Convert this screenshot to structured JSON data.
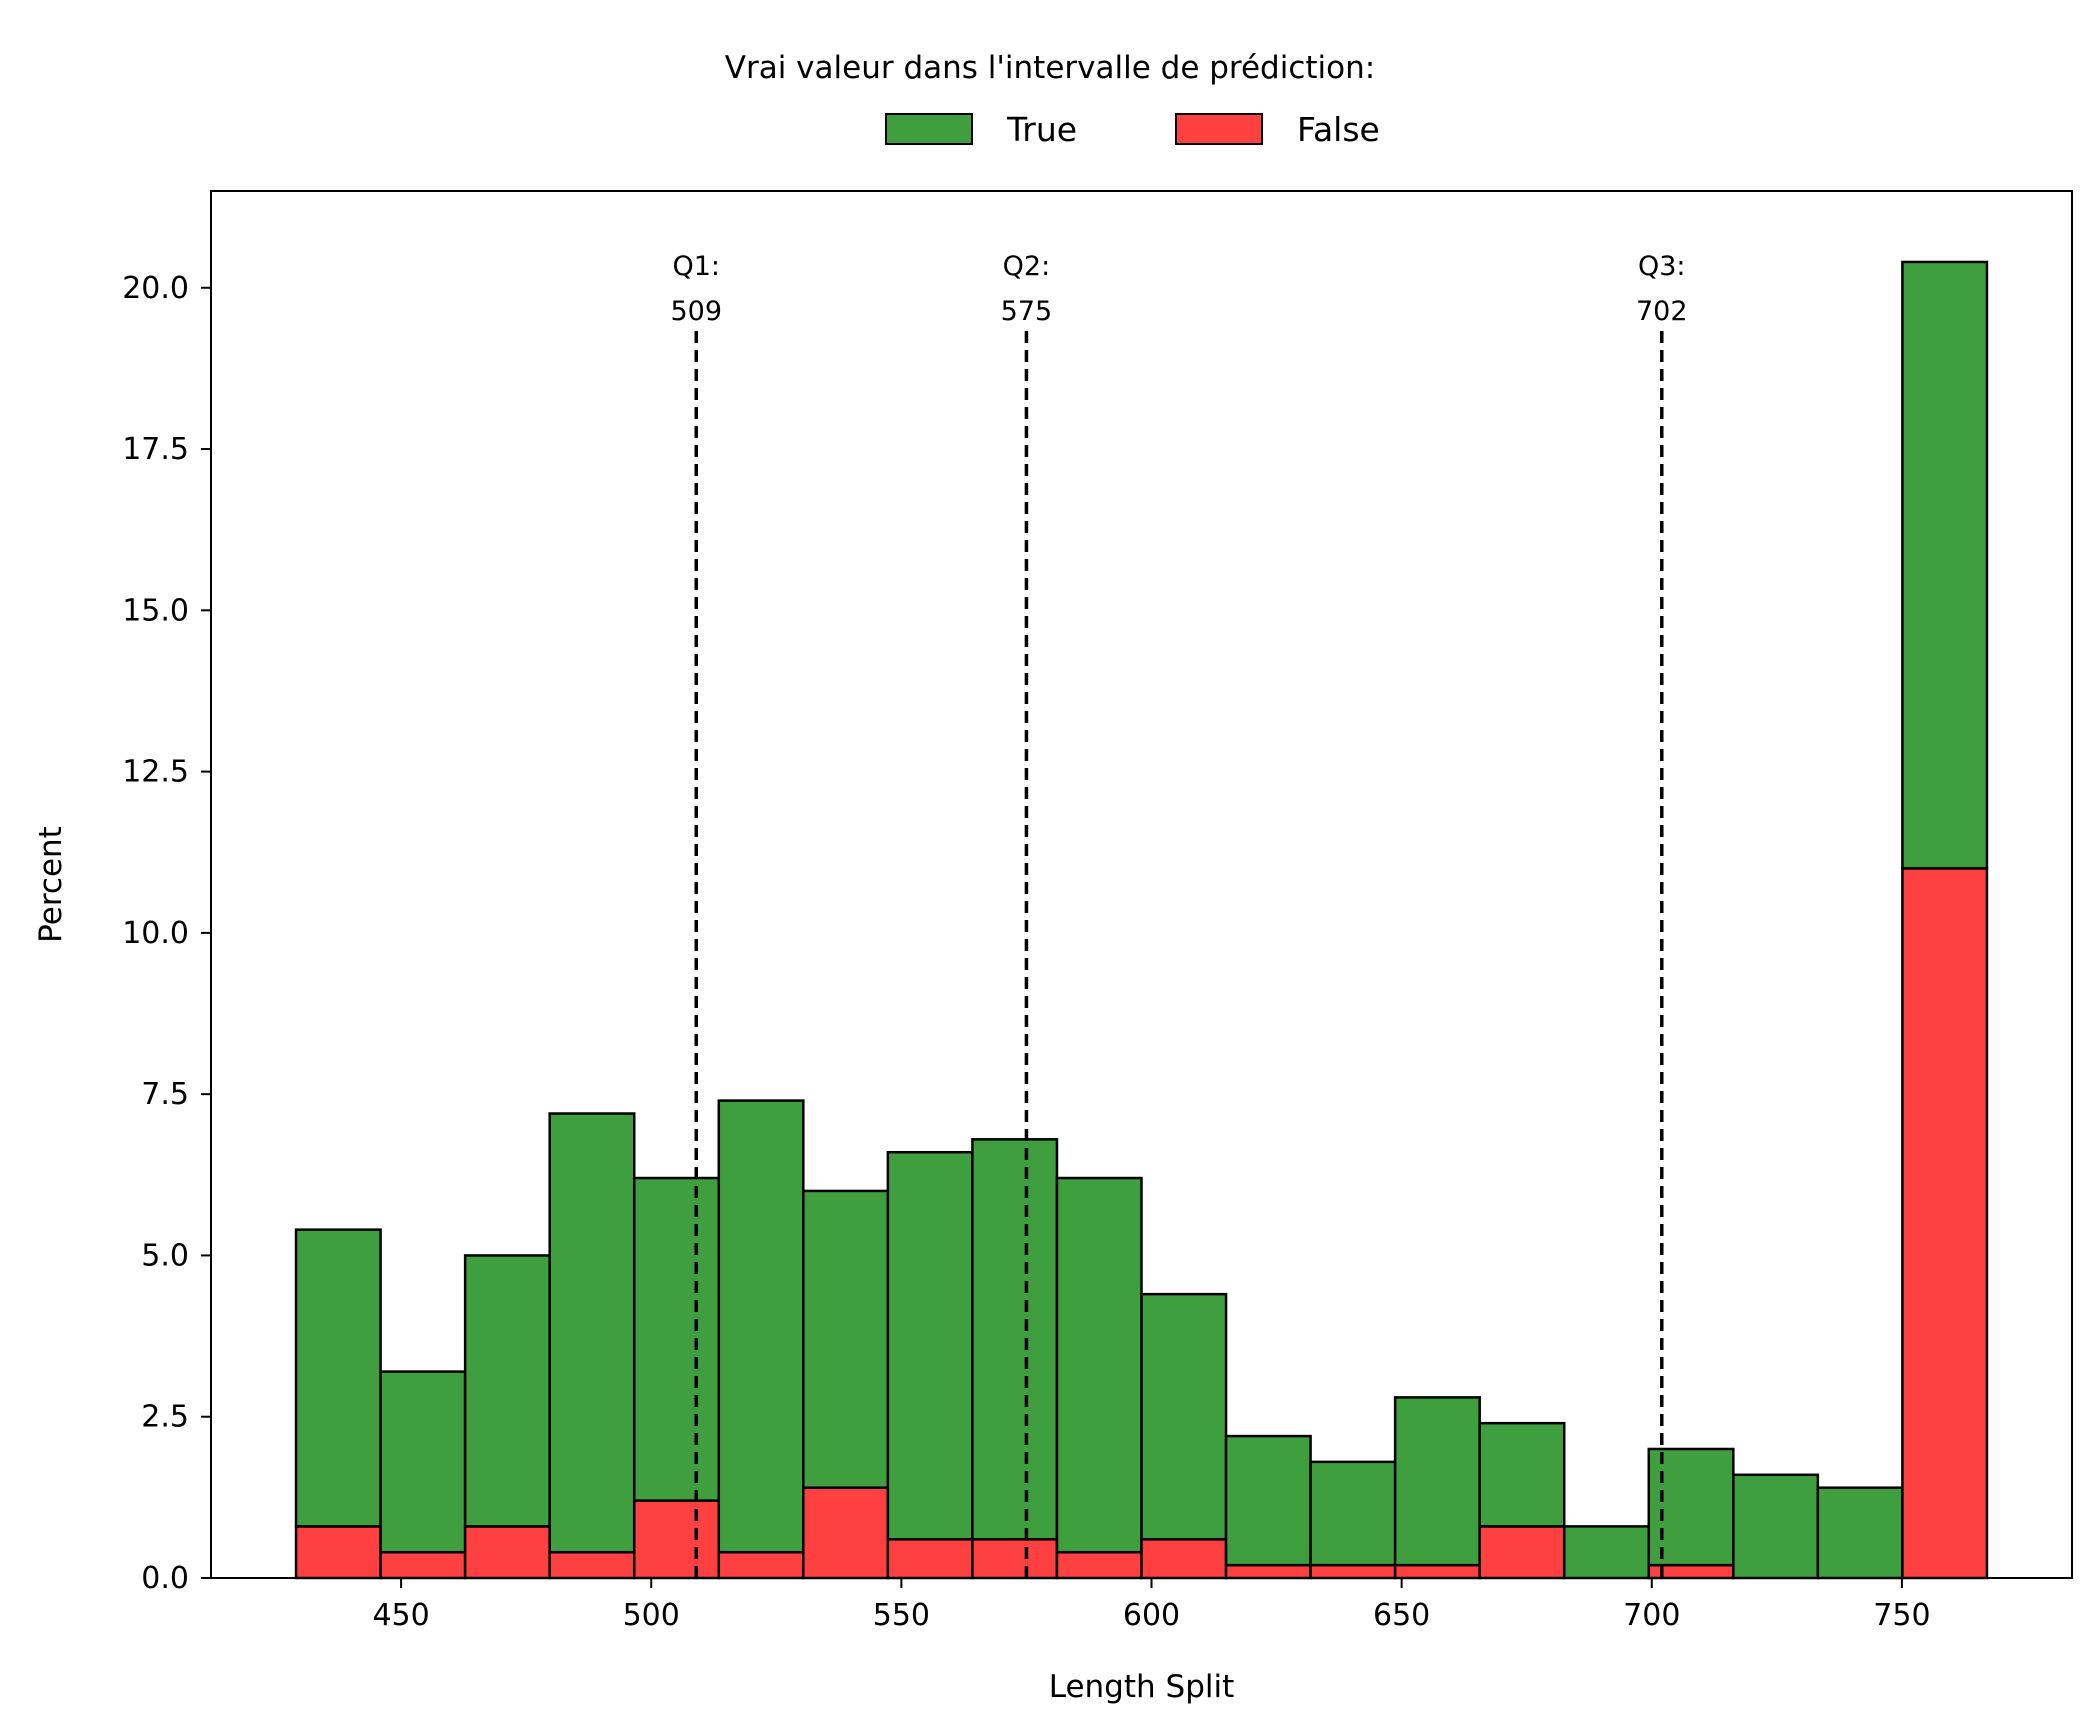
{
  "chart_data": {
    "type": "bar",
    "stacked": true,
    "xlabel": "Length Split",
    "ylabel": "Percent",
    "xlim": [
      412,
      784
    ],
    "ylim": [
      0,
      21.5
    ],
    "xticks": [
      450,
      500,
      550,
      600,
      650,
      700,
      750
    ],
    "yticks": [
      "0.0",
      "2.5",
      "5.0",
      "7.5",
      "10.0",
      "12.5",
      "15.0",
      "17.5",
      "20.0"
    ],
    "bins": [
      [
        429.0,
        445.9
      ],
      [
        445.9,
        462.8
      ],
      [
        462.8,
        479.7
      ],
      [
        479.7,
        496.6
      ],
      [
        496.6,
        513.5
      ],
      [
        513.5,
        530.4
      ],
      [
        530.4,
        547.3
      ],
      [
        547.3,
        564.2
      ],
      [
        564.2,
        581.1
      ],
      [
        581.1,
        598.0
      ],
      [
        598.0,
        614.9
      ],
      [
        614.9,
        631.8
      ],
      [
        631.8,
        648.7
      ],
      [
        648.7,
        665.6
      ],
      [
        665.6,
        682.5
      ],
      [
        682.5,
        699.4
      ],
      [
        699.4,
        716.3
      ],
      [
        716.3,
        733.2
      ],
      [
        733.2,
        750.1
      ],
      [
        750.1,
        767.0
      ]
    ],
    "legend": {
      "title": "Vrai valeur dans l'intervalle de prédiction:",
      "placement": "top-center"
    },
    "series": [
      {
        "name": "False",
        "color": "#ff4040",
        "values": [
          0.8,
          0.4,
          0.8,
          0.4,
          1.2,
          0.4,
          1.4,
          0.6,
          0.6,
          0.4,
          0.6,
          0.2,
          0.2,
          0.2,
          0.8,
          0.0,
          0.2,
          0.0,
          0.0,
          11.0
        ]
      },
      {
        "name": "True",
        "color": "#3f9f3f",
        "values": [
          4.6,
          2.8,
          4.2,
          6.8,
          5.0,
          7.0,
          4.6,
          6.0,
          6.2,
          5.8,
          3.8,
          2.0,
          1.6,
          2.6,
          1.6,
          0.8,
          1.8,
          1.6,
          1.4,
          9.4
        ]
      }
    ],
    "quartiles": [
      {
        "label": "Q1:",
        "value_text": "509",
        "x": 509
      },
      {
        "label": "Q2:",
        "value_text": "575",
        "x": 575
      },
      {
        "label": "Q3:",
        "value_text": "702",
        "x": 702
      }
    ],
    "grid": false
  }
}
